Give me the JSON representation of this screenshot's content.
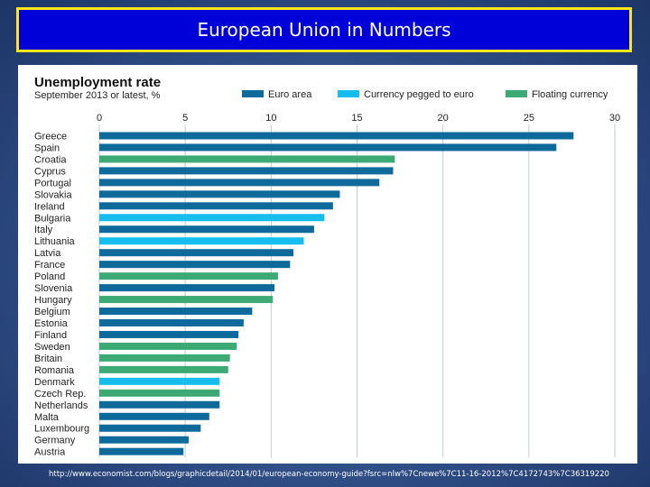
{
  "slide": {
    "title": "European Union in Numbers",
    "source": "http://www.economist.com/blogs/graphicdetail/2014/01/european-economy-guide?fsrc=nlw%7Cnewe%7C11-16-2012%7C4172743%7C36319220"
  },
  "chart_data": {
    "type": "bar",
    "orientation": "horizontal",
    "title": "Unemployment rate",
    "subtitle": "September 2013 or latest, %",
    "xlim": [
      0,
      30
    ],
    "xticks": [
      "0",
      "5",
      "10",
      "15",
      "20",
      "25",
      "30"
    ],
    "grid": true,
    "legend_position": "top-right",
    "legend": [
      {
        "name": "Euro area",
        "color": "#0d6a9b"
      },
      {
        "name": "Currency pegged to euro",
        "color": "#16bdee"
      },
      {
        "name": "Floating currency",
        "color": "#3daa75"
      }
    ],
    "categories": [
      "Greece",
      "Spain",
      "Croatia",
      "Cyprus",
      "Portugal",
      "Slovakia",
      "Ireland",
      "Bulgaria",
      "Italy",
      "Lithuania",
      "Latvia",
      "France",
      "Poland",
      "Slovenia",
      "Hungary",
      "Belgium",
      "Estonia",
      "Finland",
      "Sweden",
      "Britain",
      "Romania",
      "Denmark",
      "Czech Rep.",
      "Netherlands",
      "Malta",
      "Luxembourg",
      "Germany",
      "Austria"
    ],
    "values": [
      27.6,
      26.6,
      17.2,
      17.1,
      16.3,
      14.0,
      13.6,
      13.1,
      12.5,
      11.9,
      11.3,
      11.1,
      10.4,
      10.2,
      10.1,
      8.9,
      8.4,
      8.1,
      8.0,
      7.6,
      7.5,
      7.0,
      7.0,
      7.0,
      6.4,
      5.9,
      5.2,
      4.9
    ],
    "groups": [
      "Euro area",
      "Euro area",
      "Floating currency",
      "Euro area",
      "Euro area",
      "Euro area",
      "Euro area",
      "Currency pegged to euro",
      "Euro area",
      "Currency pegged to euro",
      "Euro area",
      "Euro area",
      "Floating currency",
      "Euro area",
      "Floating currency",
      "Euro area",
      "Euro area",
      "Euro area",
      "Floating currency",
      "Floating currency",
      "Floating currency",
      "Currency pegged to euro",
      "Floating currency",
      "Euro area",
      "Euro area",
      "Euro area",
      "Euro area",
      "Euro area"
    ]
  }
}
